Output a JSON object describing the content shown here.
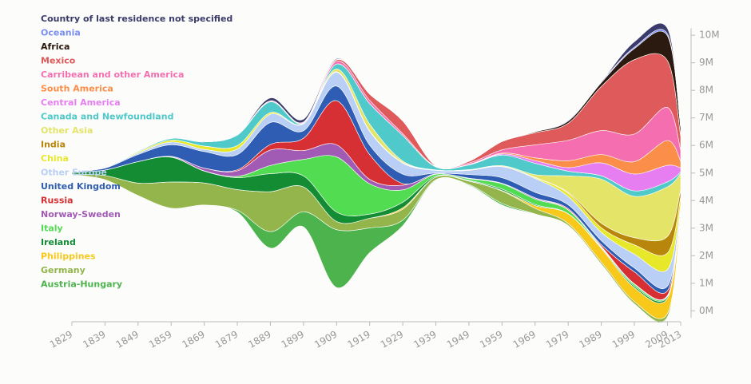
{
  "chart_data": {
    "type": "streamgraph",
    "x": [
      1829,
      1839,
      1849,
      1859,
      1869,
      1879,
      1889,
      1899,
      1909,
      1919,
      1929,
      1939,
      1949,
      1959,
      1969,
      1979,
      1989,
      1999,
      2009,
      2013
    ],
    "xlim": [
      1829,
      2013
    ],
    "xticks": [
      1829,
      1839,
      1849,
      1859,
      1869,
      1879,
      1889,
      1899,
      1909,
      1919,
      1929,
      1939,
      1949,
      1959,
      1969,
      1979,
      1989,
      1999,
      2009,
      2013
    ],
    "ylim": [
      -250000,
      10250000
    ],
    "yticks": [
      {
        "value": 0,
        "label": "0M"
      },
      {
        "value": 1000000,
        "label": "1M"
      },
      {
        "value": 2000000,
        "label": "2M"
      },
      {
        "value": 3000000,
        "label": "3M"
      },
      {
        "value": 4000000,
        "label": "4M"
      },
      {
        "value": 5000000,
        "label": "5M"
      },
      {
        "value": 6000000,
        "label": "6M"
      },
      {
        "value": 7000000,
        "label": "7M"
      },
      {
        "value": 8000000,
        "label": "8M"
      },
      {
        "value": 9000000,
        "label": "9M"
      },
      {
        "value": 10000000,
        "label": "10M"
      }
    ],
    "legend": "top-left",
    "series": [
      {
        "name": "Country of last residence not specified",
        "color": "#3b3b6b",
        "values": [
          10000,
          20000,
          10000,
          10000,
          20000,
          10000,
          100000,
          100000,
          30000,
          10000,
          0,
          0,
          0,
          0,
          0,
          0,
          0,
          200000,
          200000,
          30000
        ]
      },
      {
        "name": "Oceania",
        "color": "#7b8ff0",
        "values": [
          0,
          0,
          0,
          0,
          0,
          10000,
          10000,
          10000,
          10000,
          10000,
          10000,
          0,
          10000,
          10000,
          10000,
          30000,
          40000,
          50000,
          70000,
          20000
        ]
      },
      {
        "name": "Africa",
        "color": "#2b1a0f",
        "values": [
          0,
          0,
          0,
          0,
          0,
          0,
          0,
          0,
          10000,
          10000,
          10000,
          0,
          10000,
          10000,
          30000,
          80000,
          140000,
          400000,
          900000,
          300000
        ]
      },
      {
        "name": "Mexico",
        "color": "#df5a5a",
        "values": [
          0,
          0,
          0,
          0,
          0,
          0,
          0,
          0,
          50000,
          220000,
          460000,
          20000,
          60000,
          300000,
          440000,
          620000,
          1600000,
          2700000,
          1700000,
          500000
        ]
      },
      {
        "name": "Carribean and other America",
        "color": "#f56fb0",
        "values": [
          0,
          10000,
          10000,
          10000,
          10000,
          20000,
          30000,
          30000,
          100000,
          120000,
          70000,
          20000,
          50000,
          120000,
          470000,
          740000,
          870000,
          1000000,
          1200000,
          400000
        ]
      },
      {
        "name": "South America",
        "color": "#fb8f4a",
        "values": [
          0,
          0,
          0,
          0,
          0,
          0,
          0,
          0,
          0,
          0,
          0,
          0,
          10000,
          30000,
          100000,
          250000,
          300000,
          450000,
          900000,
          250000
        ]
      },
      {
        "name": "Central America",
        "color": "#e67ef2",
        "values": [
          0,
          0,
          0,
          0,
          0,
          0,
          0,
          0,
          0,
          0,
          0,
          0,
          10000,
          40000,
          100000,
          130000,
          470000,
          610000,
          600000,
          150000
        ]
      },
      {
        "name": "Canada and Newfoundland",
        "color": "#4fc9c9",
        "values": [
          0,
          10000,
          30000,
          60000,
          150000,
          380000,
          390000,
          10000,
          180000,
          740000,
          920000,
          110000,
          170000,
          380000,
          410000,
          170000,
          120000,
          200000,
          180000,
          50000
        ]
      },
      {
        "name": "Other Asia",
        "color": "#e3e468",
        "values": [
          0,
          0,
          0,
          0,
          0,
          0,
          0,
          10000,
          100000,
          250000,
          50000,
          10000,
          10000,
          30000,
          100000,
          600000,
          1600000,
          1500000,
          1800000,
          600000
        ]
      },
      {
        "name": "India",
        "color": "#b8860b",
        "values": [
          0,
          0,
          0,
          0,
          0,
          0,
          0,
          0,
          0,
          0,
          0,
          0,
          0,
          0,
          10000,
          30000,
          160000,
          260000,
          600000,
          250000
        ]
      },
      {
        "name": "China",
        "color": "#e8e82a",
        "values": [
          0,
          0,
          40000,
          70000,
          120000,
          130000,
          60000,
          10000,
          20000,
          20000,
          30000,
          5000,
          20000,
          10000,
          30000,
          120000,
          170000,
          340000,
          600000,
          300000
        ]
      },
      {
        "name": "Other Europe",
        "color": "#b9cff5",
        "values": [
          10000,
          20000,
          50000,
          100000,
          80000,
          200000,
          300000,
          250000,
          500000,
          500000,
          400000,
          100000,
          150000,
          400000,
          500000,
          300000,
          300000,
          500000,
          600000,
          150000
        ]
      },
      {
        "name": "United Kingdom",
        "color": "#2e5db3",
        "values": [
          20000,
          70000,
          260000,
          420000,
          600000,
          550000,
          800000,
          270000,
          530000,
          340000,
          340000,
          30000,
          130000,
          200000,
          200000,
          140000,
          150000,
          140000,
          170000,
          50000
        ]
      },
      {
        "name": "Russia",
        "color": "#d62f34",
        "values": [
          0,
          0,
          0,
          0,
          0,
          40000,
          200000,
          450000,
          1600000,
          900000,
          60000,
          1000,
          1000,
          2000,
          5000,
          40000,
          60000,
          430000,
          170000,
          50000
        ]
      },
      {
        "name": "Norway-Sweden",
        "color": "#a25bb5",
        "values": [
          0,
          0,
          0,
          20000,
          100000,
          200000,
          560000,
          320000,
          440000,
          160000,
          170000,
          10000,
          20000,
          20000,
          40000,
          10000,
          10000,
          20000,
          20000,
          10000
        ]
      },
      {
        "name": "Italy",
        "color": "#52dc52",
        "values": [
          0,
          0,
          0,
          10000,
          10000,
          50000,
          300000,
          600000,
          2000000,
          1100000,
          450000,
          70000,
          60000,
          190000,
          200000,
          130000,
          30000,
          70000,
          30000,
          10000
        ]
      },
      {
        "name": "Ireland",
        "color": "#138c34",
        "values": [
          50000,
          200000,
          780000,
          900000,
          430000,
          430000,
          650000,
          400000,
          340000,
          150000,
          200000,
          30000,
          20000,
          50000,
          40000,
          10000,
          30000,
          60000,
          60000,
          10000
        ]
      },
      {
        "name": "Philippines",
        "color": "#f8c91a",
        "values": [
          0,
          0,
          0,
          0,
          0,
          0,
          0,
          0,
          0,
          0,
          50000,
          0,
          10000,
          20000,
          100000,
          350000,
          500000,
          500000,
          550000,
          200000
        ]
      },
      {
        "name": "Germany",
        "color": "#93b54b",
        "values": [
          20000,
          150000,
          450000,
          950000,
          800000,
          750000,
          1450000,
          900000,
          300000,
          350000,
          400000,
          100000,
          120000,
          450000,
          200000,
          70000,
          70000,
          80000,
          120000,
          30000
        ]
      },
      {
        "name": "Austria-Hungary",
        "color": "#4db44d",
        "values": [
          0,
          0,
          0,
          0,
          0,
          70000,
          600000,
          550000,
          2100000,
          900000,
          200000,
          20000,
          30000,
          60000,
          20000,
          15000,
          20000,
          20000,
          30000,
          10000
        ]
      }
    ]
  }
}
